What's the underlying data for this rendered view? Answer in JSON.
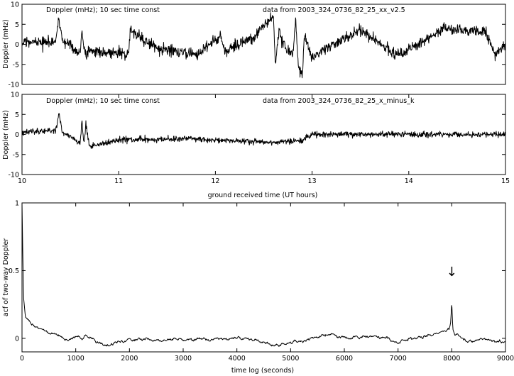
{
  "chart_data": [
    {
      "type": "line",
      "title": "Doppler (mHz); 10 sec time const",
      "subtitle": "data from 2003_324_0736_82_25_xx_v2.5",
      "xlabel": "",
      "ylabel": "Doppler (mHz)",
      "xlim": [
        10,
        15
      ],
      "ylim": [
        -10,
        10
      ],
      "yticks": [
        "10",
        "5",
        "0",
        "-5",
        "-10"
      ],
      "grid": false,
      "noise_rms": 1.0,
      "series": [
        {
          "x": [
            10.0,
            10.35,
            10.38,
            10.42,
            10.6,
            10.62,
            10.66,
            10.68,
            11.1,
            11.12,
            11.4,
            11.8,
            12.05,
            12.1,
            12.38,
            12.6,
            12.62,
            12.66,
            12.68,
            12.8,
            12.83,
            12.86,
            12.9,
            12.92,
            13.0,
            13.5,
            13.9,
            14.35,
            14.8,
            14.9,
            15.0
          ],
          "y": [
            0.5,
            0.5,
            6.5,
            1.0,
            -2.0,
            3.5,
            -3.5,
            -1.5,
            -2.5,
            3.5,
            -1.0,
            -2.5,
            2.0,
            -2.0,
            1.5,
            7.0,
            -5.5,
            4.5,
            1.0,
            -3.0,
            6.5,
            -6.0,
            -7.5,
            2.0,
            -3.0,
            3.5,
            -3.0,
            4.0,
            3.0,
            -3.0,
            0.0
          ]
        }
      ]
    },
    {
      "type": "line",
      "title": "Doppler (mHz); 10 sec time const",
      "subtitle": "data from 2003_324_0736_82_25_x_minus_k",
      "xlabel": "ground received time (UT hours)",
      "ylabel": "Doppler (mHz)",
      "xlim": [
        10,
        15
      ],
      "xticks": [
        "10",
        "11",
        "12",
        "13",
        "14",
        "15"
      ],
      "ylim": [
        -10,
        10
      ],
      "yticks": [
        "10",
        "5",
        "0",
        "-5",
        "-10"
      ],
      "grid": false,
      "noise_rms": 0.5,
      "series": [
        {
          "x": [
            10.0,
            10.35,
            10.38,
            10.42,
            10.6,
            10.62,
            10.64,
            10.66,
            10.7,
            11.0,
            11.7,
            12.05,
            12.6,
            12.9,
            13.0,
            15.0
          ],
          "y": [
            0.5,
            1.0,
            5.0,
            0.5,
            -2.0,
            3.5,
            -2.5,
            2.5,
            -3.0,
            -1.5,
            -1.0,
            -1.5,
            -2.0,
            -1.5,
            0.0,
            0.0
          ]
        }
      ]
    },
    {
      "type": "line",
      "title": "",
      "xlabel": "time log (seconds)",
      "ylabel": "acf of two-way Doppler",
      "xlim": [
        0,
        9000
      ],
      "xticks": [
        "0",
        "1000",
        "2000",
        "3000",
        "4000",
        "5000",
        "6000",
        "7000",
        "8000",
        "9000"
      ],
      "ylim": [
        -0.1,
        1.0
      ],
      "yticks": [
        "1",
        "0.5",
        "0"
      ],
      "grid": false,
      "annotation": "↓",
      "annotation_x": 8000,
      "noise_rms": 0.008,
      "series": [
        {
          "x": [
            0,
            15,
            30,
            60,
            100,
            200,
            400,
            600,
            800,
            1000,
            1200,
            1400,
            1600,
            1800,
            2000,
            2300,
            2600,
            3000,
            3400,
            3800,
            4200,
            4500,
            4700,
            5000,
            5300,
            5600,
            6000,
            6400,
            6800,
            7000,
            7050,
            7300,
            7600,
            7800,
            7950,
            7980,
            8000,
            8020,
            8060,
            8200,
            8400,
            8600,
            8800,
            9000
          ],
          "y": [
            1.0,
            0.6,
            0.3,
            0.17,
            0.14,
            0.1,
            0.06,
            0.03,
            0.0,
            0.0,
            0.01,
            -0.02,
            -0.05,
            -0.02,
            -0.01,
            0.0,
            -0.02,
            0.0,
            -0.01,
            0.0,
            0.0,
            -0.02,
            -0.06,
            -0.03,
            -0.01,
            0.03,
            0.01,
            0.01,
            0.0,
            -0.04,
            -0.02,
            0.0,
            0.02,
            0.04,
            0.06,
            0.12,
            0.26,
            0.06,
            0.02,
            -0.01,
            -0.02,
            0.0,
            -0.02,
            -0.02
          ]
        }
      ]
    }
  ]
}
